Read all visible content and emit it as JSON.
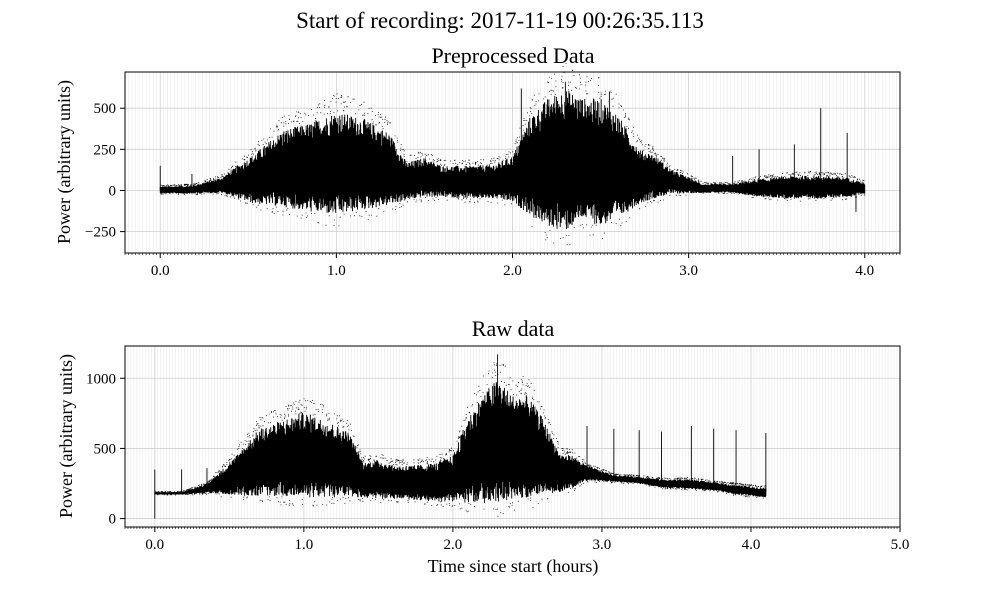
{
  "suptitle": "Start of recording: 2017-11-19 00:26:35.113",
  "chart_data": [
    {
      "type": "scatter",
      "title": "Preprocessed Data",
      "xlabel": "",
      "ylabel": "Power (arbitrary units)",
      "xlim": [
        -0.2,
        4.2
      ],
      "ylim": [
        -380,
        720
      ],
      "xticks": [
        0.0,
        1.0,
        2.0,
        3.0,
        4.0
      ],
      "xtick_labels": [
        "0.0",
        "1.0",
        "2.0",
        "3.0",
        "4.0"
      ],
      "yticks": [
        -250,
        0,
        250,
        500
      ],
      "ytick_labels": [
        "−250",
        "0",
        "250",
        "500"
      ],
      "grid": true,
      "color": "#000000",
      "series_x": [
        0.0,
        0.18,
        0.35,
        0.53,
        0.7,
        0.85,
        1.0,
        1.15,
        1.3,
        1.4,
        1.5,
        1.6,
        1.75,
        1.9,
        2.0,
        2.1,
        2.2,
        2.3,
        2.4,
        2.5,
        2.6,
        2.72,
        2.8,
        2.9,
        3.08,
        3.25,
        3.4,
        3.6,
        3.75,
        3.9,
        4.0
      ],
      "series_upper": [
        25,
        30,
        80,
        220,
        370,
        410,
        480,
        440,
        350,
        170,
        200,
        150,
        150,
        160,
        210,
        450,
        560,
        620,
        560,
        560,
        460,
        250,
        220,
        130,
        40,
        40,
        70,
        90,
        90,
        80,
        45
      ],
      "series_lower": [
        -20,
        -20,
        -15,
        -80,
        -100,
        -130,
        -150,
        -120,
        -90,
        -60,
        -40,
        -40,
        -50,
        -50,
        -70,
        -150,
        -220,
        -250,
        -170,
        -220,
        -170,
        -80,
        -50,
        -20,
        -15,
        -15,
        -40,
        -50,
        -50,
        -40,
        -20
      ],
      "spikes": [
        {
          "x": 0.0,
          "y": 150
        },
        {
          "x": 0.18,
          "y": 100
        },
        {
          "x": 2.05,
          "y": 620
        },
        {
          "x": 2.3,
          "y": 660
        },
        {
          "x": 2.55,
          "y": 600
        },
        {
          "x": 3.25,
          "y": 210
        },
        {
          "x": 3.4,
          "y": 250
        },
        {
          "x": 3.6,
          "y": 280
        },
        {
          "x": 3.75,
          "y": 500
        },
        {
          "x": 3.9,
          "y": 350
        },
        {
          "x": 3.95,
          "y": -130
        }
      ]
    },
    {
      "type": "scatter",
      "title": "Raw data",
      "xlabel": "Time since start (hours)",
      "ylabel": "Power (arbitrary units)",
      "xlim": [
        -0.2,
        5.0
      ],
      "ylim": [
        -60,
        1230
      ],
      "xticks": [
        0.0,
        1.0,
        2.0,
        3.0,
        4.0,
        5.0
      ],
      "xtick_labels": [
        "0.0",
        "1.0",
        "2.0",
        "3.0",
        "4.0",
        "5.0"
      ],
      "yticks": [
        0,
        500,
        1000
      ],
      "ytick_labels": [
        "0",
        "500",
        "1000"
      ],
      "grid": true,
      "color": "#000000",
      "series_x": [
        0.0,
        0.18,
        0.35,
        0.53,
        0.7,
        0.85,
        1.0,
        1.15,
        1.3,
        1.4,
        1.5,
        1.6,
        1.75,
        1.9,
        2.0,
        2.1,
        2.2,
        2.3,
        2.4,
        2.5,
        2.6,
        2.72,
        2.8,
        2.9,
        3.08,
        3.25,
        3.4,
        3.6,
        3.75,
        3.9,
        4.0,
        4.1
      ],
      "series_upper": [
        190,
        190,
        250,
        430,
        640,
        700,
        760,
        700,
        620,
        400,
        420,
        380,
        380,
        400,
        450,
        720,
        880,
        1000,
        880,
        880,
        720,
        460,
        450,
        380,
        310,
        300,
        280,
        280,
        260,
        240,
        230,
        220
      ],
      "series_lower": [
        170,
        170,
        180,
        170,
        160,
        160,
        150,
        150,
        150,
        150,
        140,
        140,
        130,
        120,
        120,
        110,
        110,
        110,
        130,
        150,
        170,
        190,
        220,
        270,
        260,
        250,
        220,
        210,
        200,
        170,
        160,
        150
      ],
      "spikes": [
        {
          "x": 0.0,
          "y": 350
        },
        {
          "x": 0.0,
          "y": 0
        },
        {
          "x": 0.18,
          "y": 350
        },
        {
          "x": 0.35,
          "y": 360
        },
        {
          "x": 2.3,
          "y": 1170
        },
        {
          "x": 2.9,
          "y": 660
        },
        {
          "x": 3.08,
          "y": 640
        },
        {
          "x": 3.25,
          "y": 630
        },
        {
          "x": 3.4,
          "y": 620
        },
        {
          "x": 3.6,
          "y": 660
        },
        {
          "x": 3.75,
          "y": 640
        },
        {
          "x": 3.9,
          "y": 630
        },
        {
          "x": 4.1,
          "y": 610
        }
      ]
    }
  ]
}
